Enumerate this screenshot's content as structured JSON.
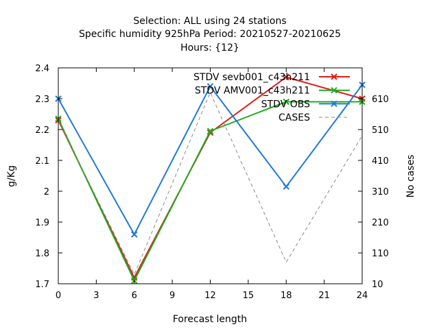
{
  "chart_data": {
    "type": "line",
    "title_lines": [
      "Selection: ALL using    24 stations",
      "Specific humidity 925hPa   Period: 20210527-20210625",
      "Hours: {12}"
    ],
    "xlabel": "Forecast length",
    "ylabel": "g/Kg",
    "y2label": "No cases",
    "x": [
      0,
      6,
      12,
      18,
      24
    ],
    "xlim": [
      0,
      24
    ],
    "xticks": [
      0,
      3,
      6,
      9,
      12,
      15,
      18,
      21,
      24
    ],
    "ylim": [
      1.7,
      2.4
    ],
    "yticks": [
      "1.7",
      "1.8",
      "1.9",
      "2",
      "2.1",
      "2.2",
      "2.3",
      "2.4"
    ],
    "y2lim": [
      10,
      710
    ],
    "y2ticks": [
      10,
      110,
      210,
      310,
      410,
      510,
      610
    ],
    "legend_position": "top-right",
    "grid": false,
    "series": [
      {
        "name": "STDV sevb001_c43h211",
        "axis": "y",
        "color": "#e41a1c",
        "marker": "x",
        "dashed": false,
        "values": [
          2.23,
          1.72,
          2.19,
          2.37,
          2.3
        ]
      },
      {
        "name": "STDV AMV001_c43h211",
        "axis": "y",
        "color": "#1fad1f",
        "marker": "x",
        "dashed": false,
        "values": [
          2.235,
          1.71,
          2.195,
          2.29,
          2.29
        ]
      },
      {
        "name": "STDV OBS",
        "axis": "y",
        "color": "#1e78d8",
        "marker": "x",
        "dashed": false,
        "values": [
          2.3,
          1.86,
          2.34,
          2.015,
          2.345
        ]
      },
      {
        "name": "CASES",
        "axis": "y2",
        "color": "#888888",
        "marker": "none",
        "dashed": true,
        "values": [
          540,
          40,
          630,
          80,
          490
        ]
      }
    ]
  }
}
